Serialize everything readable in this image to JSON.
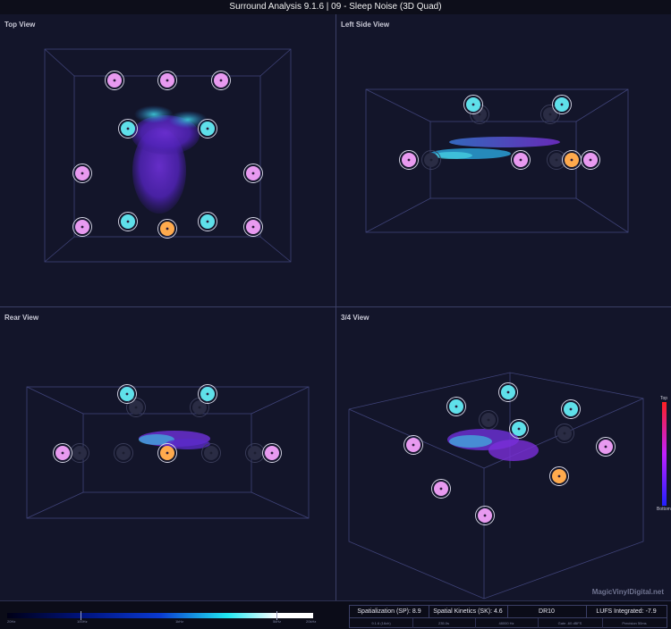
{
  "window": {
    "title": "Surround Analysis 9.1.6 | 09 - Sleep Noise (3D Quad)"
  },
  "panels": {
    "top": {
      "label": "Top View"
    },
    "left": {
      "label": "Left Side View"
    },
    "rear": {
      "label": "Rear View"
    },
    "quarter": {
      "label": "3/4 View"
    }
  },
  "height_scale": {
    "top_label": "Top",
    "bottom_label": "Bottom"
  },
  "watermark": "MagicVinylDigital.net",
  "frequency_scale": {
    "ticks": [
      "20Hz",
      "100Hz",
      "1kHz",
      "5kHz",
      "20kHz"
    ]
  },
  "stats": {
    "spatialization": "Spatialization (SP): 8.9",
    "spatial_kinetics": "Spatial Kinetics (SK): 4.6",
    "dynamic_range": "DR10",
    "lufs": "LUFS Integrated: -7.9",
    "sub": [
      "9.1.6 (16ch)",
      "235.0s",
      "48000 Hz",
      "Gate -60 dBFS",
      "Precision 50ms"
    ]
  },
  "colors": {
    "background": "#13152a",
    "speaker_surround": "#e89af0",
    "speaker_height": "#5fe0ea",
    "speaker_center": "#ffaa4d",
    "room_lines": "#3f4378"
  }
}
